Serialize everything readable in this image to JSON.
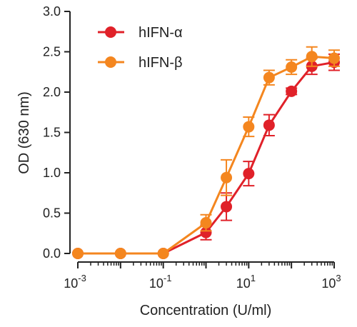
{
  "chart_data": {
    "type": "line",
    "xscale": "log",
    "xlim": [
      0.001,
      1000
    ],
    "ylim": [
      0,
      3.0
    ],
    "xlabel": "Concentration (U/ml)",
    "ylabel": "OD (630 nm)",
    "x_ticks": [
      {
        "value": 0.001,
        "base": "10",
        "exp": "-3"
      },
      {
        "value": 0.1,
        "base": "10",
        "exp": "-1"
      },
      {
        "value": 10,
        "base": "10",
        "exp": "1"
      },
      {
        "value": 1000,
        "base": "10",
        "exp": "3"
      }
    ],
    "y_ticks": [
      {
        "value": 0,
        "label": "0.0"
      },
      {
        "value": 0.5,
        "label": "0.5"
      },
      {
        "value": 1.0,
        "label": "1.0"
      },
      {
        "value": 1.5,
        "label": "1.5"
      },
      {
        "value": 2.0,
        "label": "2.0"
      },
      {
        "value": 2.5,
        "label": "2.5"
      },
      {
        "value": 3.0,
        "label": "3.0"
      }
    ],
    "legend": "top-left",
    "grid": false,
    "series": [
      {
        "name": "hIFN-α",
        "color": "#e02129",
        "x": [
          0.001,
          0.01,
          0.1,
          1,
          3,
          10,
          30,
          100,
          300,
          1000
        ],
        "y": [
          0.0,
          0.0,
          0.0,
          0.26,
          0.58,
          0.99,
          1.59,
          2.01,
          2.32,
          2.37
        ],
        "err": [
          0,
          0,
          0,
          0.09,
          0.17,
          0.15,
          0.13,
          0.04,
          0.1,
          0.1
        ]
      },
      {
        "name": "hIFN-β",
        "color": "#f4861f",
        "x": [
          0.001,
          0.01,
          0.1,
          1,
          3,
          10,
          30,
          100,
          300,
          1000
        ],
        "y": [
          0.0,
          0.0,
          0.0,
          0.38,
          0.94,
          1.57,
          2.18,
          2.31,
          2.44,
          2.42
        ],
        "err": [
          0,
          0,
          0,
          0.1,
          0.22,
          0.12,
          0.09,
          0.09,
          0.12,
          0.1
        ]
      }
    ]
  }
}
